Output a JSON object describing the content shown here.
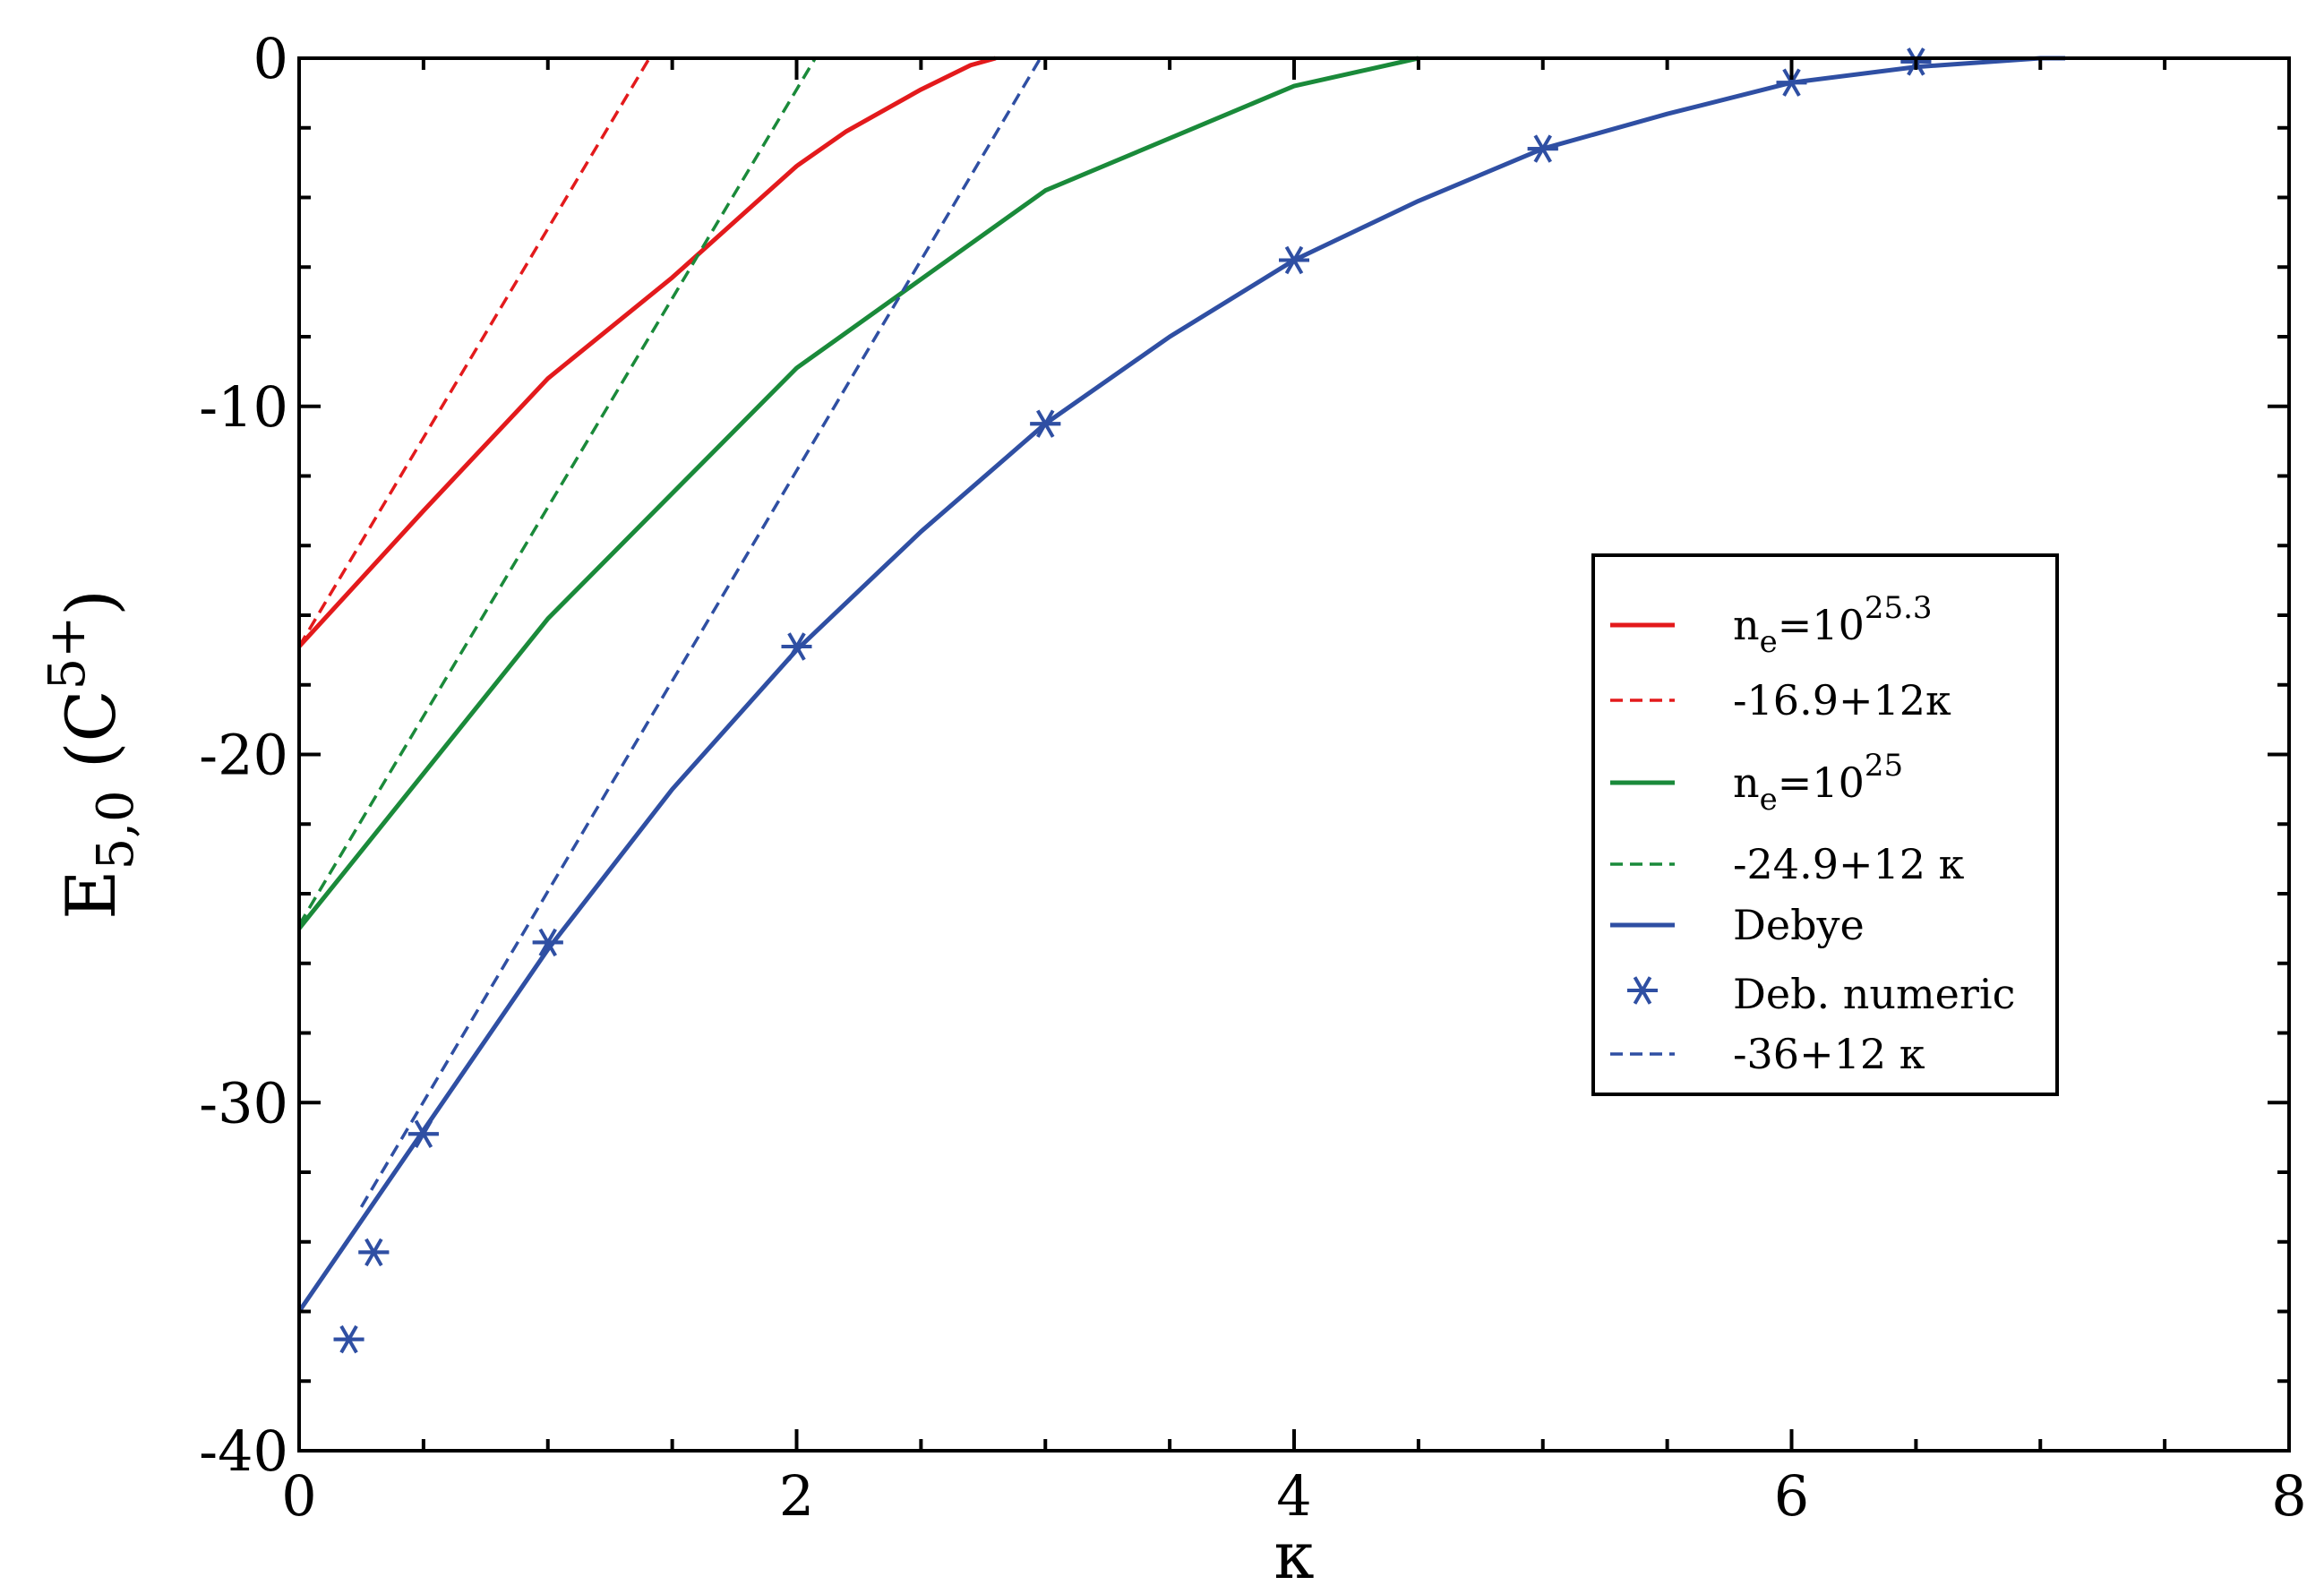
{
  "chart_data": {
    "type": "line",
    "xlabel": "κ",
    "ylabel": {
      "base": "E",
      "sub": "5,0",
      "paren_open": " (C",
      "sup": "5+",
      "paren_close": ")"
    },
    "xlim": [
      0,
      8
    ],
    "ylim": [
      -40,
      0
    ],
    "xticks": [
      0,
      2,
      4,
      6,
      8
    ],
    "yticks": [
      0,
      -10,
      -20,
      -30,
      -40
    ],
    "grid": false,
    "legend_position": "right",
    "series": [
      {
        "id": "ne253",
        "legend": {
          "base": "n",
          "sub": "e",
          "mid": "=10",
          "sup": "25.3"
        },
        "color": "#e31a1c",
        "style": "solid",
        "x": [
          0,
          0.5,
          1,
          1.5,
          2,
          2.2,
          2.5,
          2.7,
          2.8
        ],
        "y": [
          -16.9,
          -13,
          -9.2,
          -6.3,
          -3.1,
          -2.1,
          -0.9,
          -0.2,
          0
        ]
      },
      {
        "id": "fit253",
        "legend": {
          "text": "-16.9+12κ"
        },
        "color": "#e31a1c",
        "style": "dashed",
        "x": [
          0,
          1.408
        ],
        "y": [
          -16.9,
          0
        ]
      },
      {
        "id": "ne25",
        "legend": {
          "base": "n",
          "sub": "e",
          "mid": "=10",
          "sup": "25"
        },
        "color": "#1a8a3a",
        "style": "solid",
        "x": [
          0,
          1,
          2,
          3,
          4,
          4.5
        ],
        "y": [
          -25,
          -16.1,
          -8.9,
          -3.8,
          -0.8,
          0
        ]
      },
      {
        "id": "fit25",
        "legend": {
          "text": "-24.9+12 κ"
        },
        "color": "#1a8a3a",
        "style": "dashed",
        "x": [
          0,
          2.075
        ],
        "y": [
          -24.9,
          0
        ]
      },
      {
        "id": "debye",
        "legend": {
          "text": "Debye"
        },
        "color": "#2f4fa3",
        "style": "solid",
        "x": [
          0,
          0.5,
          1,
          1.5,
          2,
          2.5,
          3,
          3.5,
          4,
          4.5,
          5,
          5.5,
          6,
          6.5,
          7,
          7.1
        ],
        "y": [
          -36,
          -30.8,
          -25.6,
          -21,
          -17,
          -13.6,
          -10.5,
          -8,
          -5.8,
          -4.1,
          -2.6,
          -1.6,
          -0.7,
          -0.25,
          0,
          0
        ]
      },
      {
        "id": "debnum",
        "legend": {
          "text": "Deb. numeric"
        },
        "color": "#2f4fa3",
        "style": "markers",
        "x": [
          0.2,
          0.3,
          0.5,
          1,
          2,
          3,
          4,
          5,
          6,
          6.5
        ],
        "y": [
          -36.8,
          -34.3,
          -30.9,
          -25.4,
          -16.9,
          -10.5,
          -5.8,
          -2.6,
          -0.7,
          -0.1
        ]
      },
      {
        "id": "fitdeb",
        "legend": {
          "text": "-36+12 κ"
        },
        "color": "#2f4fa3",
        "style": "dashed",
        "x": [
          0.25,
          2.98
        ],
        "y": [
          -33,
          0
        ]
      }
    ]
  }
}
